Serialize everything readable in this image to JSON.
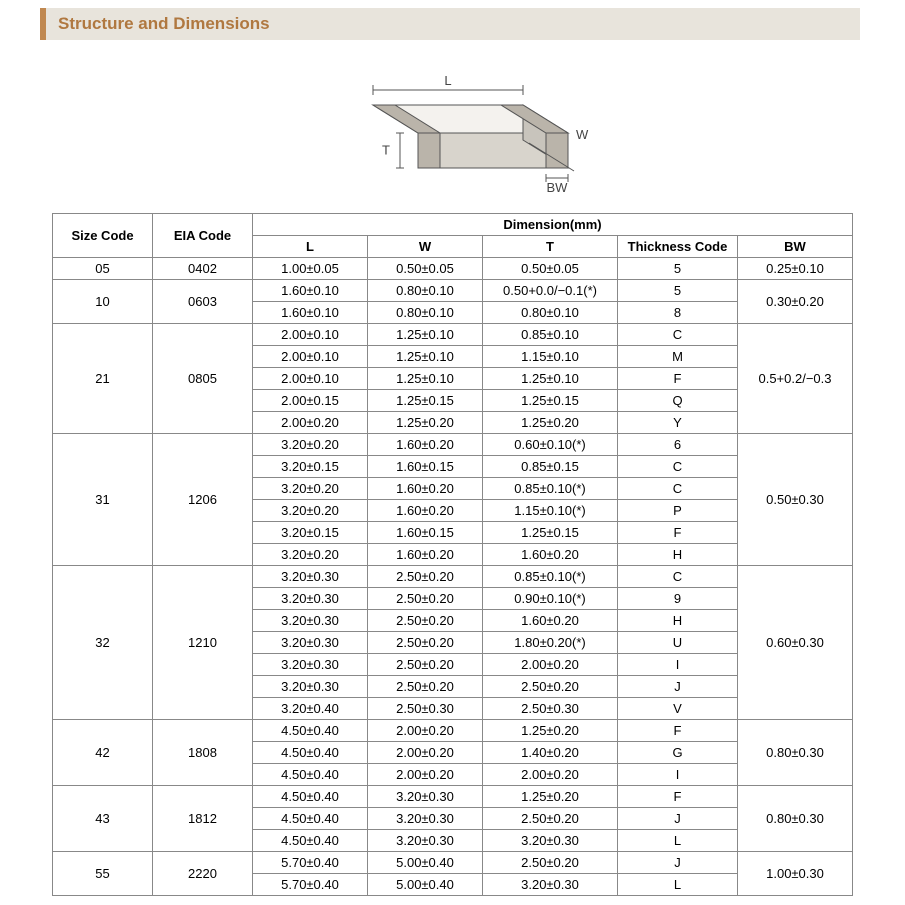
{
  "header": {
    "title": "Structure and Dimensions"
  },
  "diagram": {
    "labels": {
      "L": "L",
      "W": "W",
      "T": "T",
      "BW": "BW"
    },
    "stroke": "#555555",
    "fill_top": "#f4f2ee",
    "fill_side": "#d8d4cc",
    "fill_end": "#c8c4bc",
    "band_fill": "#bab4aa"
  },
  "table": {
    "title_dimension": "Dimension(mm)",
    "columns": {
      "size": "Size Code",
      "eia": "EIA Code",
      "L": "L",
      "W": "W",
      "T": "T",
      "tc": "Thickness  Code",
      "bw": "BW"
    },
    "groups": [
      {
        "size": "05",
        "eia": "0402",
        "bw": "0.25±0.10",
        "rows": [
          {
            "L": "1.00±0.05",
            "W": "0.50±0.05",
            "T": "0.50±0.05",
            "tc": "5"
          }
        ]
      },
      {
        "size": "10",
        "eia": "0603",
        "bw": "0.30±0.20",
        "rows": [
          {
            "L": "1.60±0.10",
            "W": "0.80±0.10",
            "T": "0.50+0.0/−0.1(*)",
            "tc": "5"
          },
          {
            "L": "1.60±0.10",
            "W": "0.80±0.10",
            "T": "0.80±0.10",
            "tc": "8"
          }
        ]
      },
      {
        "size": "21",
        "eia": "0805",
        "bw": "0.5+0.2/−0.3",
        "rows": [
          {
            "L": "2.00±0.10",
            "W": "1.25±0.10",
            "T": "0.85±0.10",
            "tc": "C"
          },
          {
            "L": "2.00±0.10",
            "W": "1.25±0.10",
            "T": "1.15±0.10",
            "tc": "M"
          },
          {
            "L": "2.00±0.10",
            "W": "1.25±0.10",
            "T": "1.25±0.10",
            "tc": "F"
          },
          {
            "L": "2.00±0.15",
            "W": "1.25±0.15",
            "T": "1.25±0.15",
            "tc": "Q"
          },
          {
            "L": "2.00±0.20",
            "W": "1.25±0.20",
            "T": "1.25±0.20",
            "tc": "Y"
          }
        ]
      },
      {
        "size": "31",
        "eia": "1206",
        "bw": "0.50±0.30",
        "rows": [
          {
            "L": "3.20±0.20",
            "W": "1.60±0.20",
            "T": "0.60±0.10(*)",
            "tc": "6"
          },
          {
            "L": "3.20±0.15",
            "W": "1.60±0.15",
            "T": "0.85±0.15",
            "tc": "C"
          },
          {
            "L": "3.20±0.20",
            "W": "1.60±0.20",
            "T": "0.85±0.10(*)",
            "tc": "C"
          },
          {
            "L": "3.20±0.20",
            "W": "1.60±0.20",
            "T": "1.15±0.10(*)",
            "tc": "P"
          },
          {
            "L": "3.20±0.15",
            "W": "1.60±0.15",
            "T": "1.25±0.15",
            "tc": "F"
          },
          {
            "L": "3.20±0.20",
            "W": "1.60±0.20",
            "T": "1.60±0.20",
            "tc": "H"
          }
        ]
      },
      {
        "size": "32",
        "eia": "1210",
        "bw": "0.60±0.30",
        "rows": [
          {
            "L": "3.20±0.30",
            "W": "2.50±0.20",
            "T": "0.85±0.10(*)",
            "tc": "C"
          },
          {
            "L": "3.20±0.30",
            "W": "2.50±0.20",
            "T": "0.90±0.10(*)",
            "tc": "9"
          },
          {
            "L": "3.20±0.30",
            "W": "2.50±0.20",
            "T": "1.60±0.20",
            "tc": "H"
          },
          {
            "L": "3.20±0.30",
            "W": "2.50±0.20",
            "T": "1.80±0.20(*)",
            "tc": "U"
          },
          {
            "L": "3.20±0.30",
            "W": "2.50±0.20",
            "T": "2.00±0.20",
            "tc": "I"
          },
          {
            "L": "3.20±0.30",
            "W": "2.50±0.20",
            "T": "2.50±0.20",
            "tc": "J"
          },
          {
            "L": "3.20±0.40",
            "W": "2.50±0.30",
            "T": "2.50±0.30",
            "tc": "V"
          }
        ]
      },
      {
        "size": "42",
        "eia": "1808",
        "bw": "0.80±0.30",
        "rows": [
          {
            "L": "4.50±0.40",
            "W": "2.00±0.20",
            "T": "1.25±0.20",
            "tc": "F"
          },
          {
            "L": "4.50±0.40",
            "W": "2.00±0.20",
            "T": "1.40±0.20",
            "tc": "G"
          },
          {
            "L": "4.50±0.40",
            "W": "2.00±0.20",
            "T": "2.00±0.20",
            "tc": "I"
          }
        ]
      },
      {
        "size": "43",
        "eia": "1812",
        "bw": "0.80±0.30",
        "rows": [
          {
            "L": "4.50±0.40",
            "W": "3.20±0.30",
            "T": "1.25±0.20",
            "tc": "F"
          },
          {
            "L": "4.50±0.40",
            "W": "3.20±0.30",
            "T": "2.50±0.20",
            "tc": "J"
          },
          {
            "L": "4.50±0.40",
            "W": "3.20±0.30",
            "T": "3.20±0.30",
            "tc": "L"
          }
        ]
      },
      {
        "size": "55",
        "eia": "2220",
        "bw": "1.00±0.30",
        "rows": [
          {
            "L": "5.70±0.40",
            "W": "5.00±0.40",
            "T": "2.50±0.20",
            "tc": "J"
          },
          {
            "L": "5.70±0.40",
            "W": "5.00±0.40",
            "T": "3.20±0.30",
            "tc": "L"
          }
        ]
      }
    ]
  }
}
